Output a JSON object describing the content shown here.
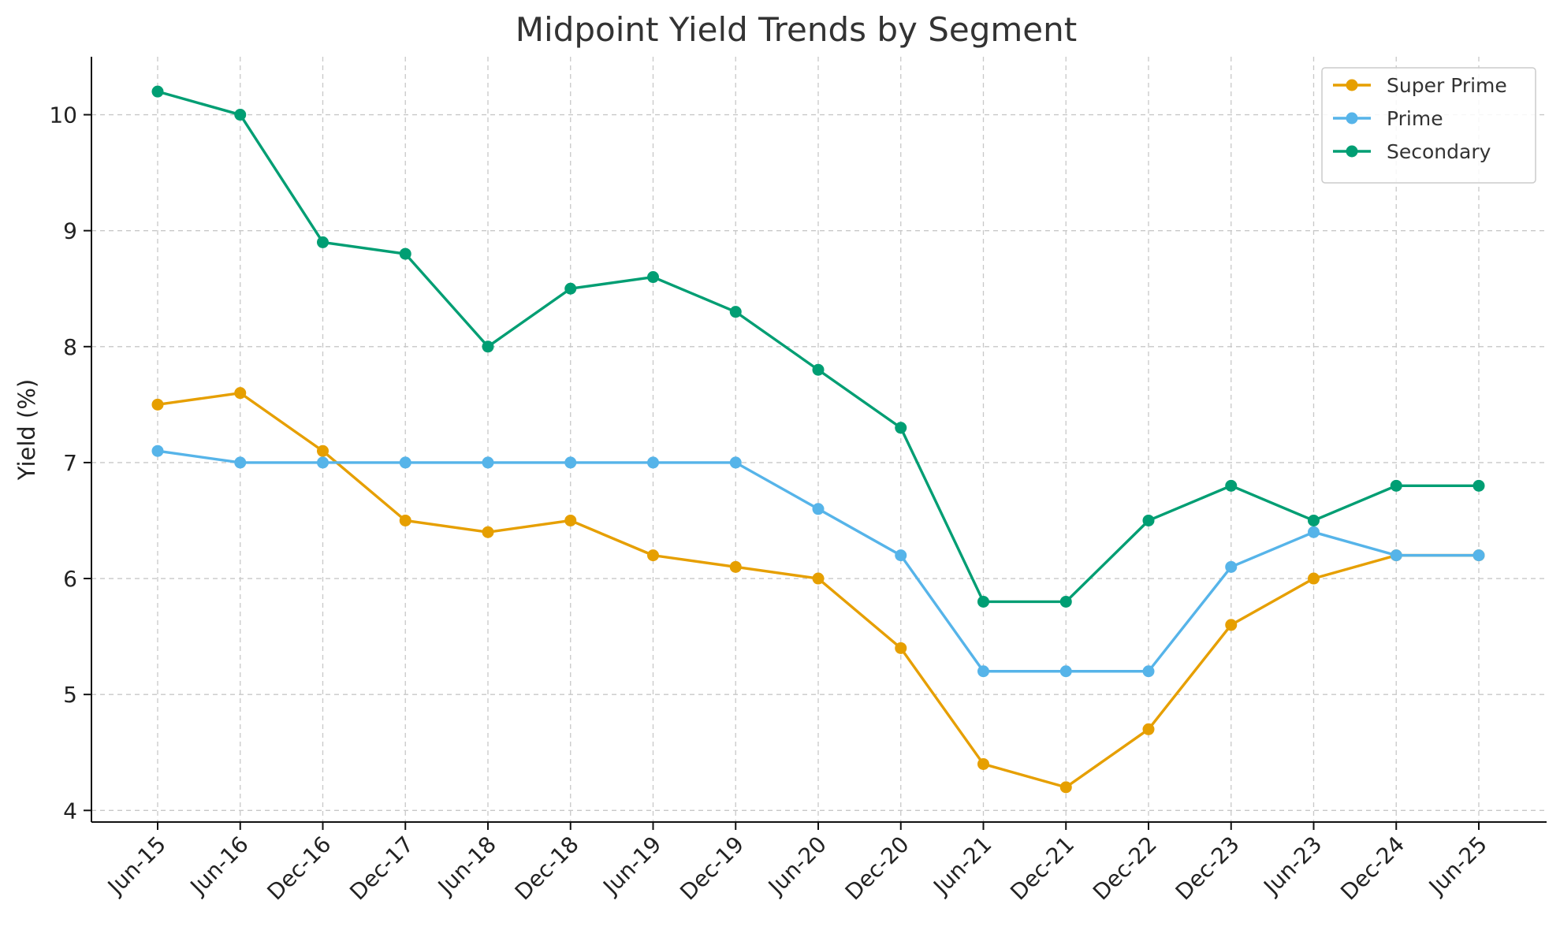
{
  "chart_data": {
    "type": "line",
    "title": "Midpoint Yield Trends by Segment",
    "xlabel": "",
    "ylabel": "Yield (%)",
    "categories": [
      "Jun-15",
      "Jun-16",
      "Dec-16",
      "Dec-17",
      "Jun-18",
      "Dec-18",
      "Jun-19",
      "Dec-19",
      "Jun-20",
      "Dec-20",
      "Jun-21",
      "Dec-21",
      "Dec-22",
      "Dec-23",
      "Jun-23",
      "Dec-24",
      "Jun-25"
    ],
    "ylim": [
      3.9,
      10.5
    ],
    "yticks": [
      4,
      5,
      6,
      7,
      8,
      9,
      10
    ],
    "grid": true,
    "legend_position": "top-right",
    "series": [
      {
        "name": "Super Prime",
        "color": "#E69F00",
        "values": [
          7.5,
          7.6,
          7.1,
          6.5,
          6.4,
          6.5,
          6.2,
          6.1,
          6.0,
          5.4,
          4.4,
          4.2,
          4.7,
          5.6,
          6.0,
          6.2,
          6.2
        ]
      },
      {
        "name": "Prime",
        "color": "#56B4E9",
        "values": [
          7.1,
          7.0,
          7.0,
          7.0,
          7.0,
          7.0,
          7.0,
          7.0,
          6.6,
          6.2,
          5.2,
          5.2,
          5.2,
          6.1,
          6.4,
          6.2,
          6.2
        ]
      },
      {
        "name": "Secondary",
        "color": "#009E73",
        "values": [
          10.2,
          10.0,
          8.9,
          8.8,
          8.0,
          8.5,
          8.6,
          8.3,
          7.8,
          7.3,
          5.8,
          5.8,
          6.5,
          6.8,
          6.5,
          6.8,
          6.8
        ]
      }
    ]
  }
}
